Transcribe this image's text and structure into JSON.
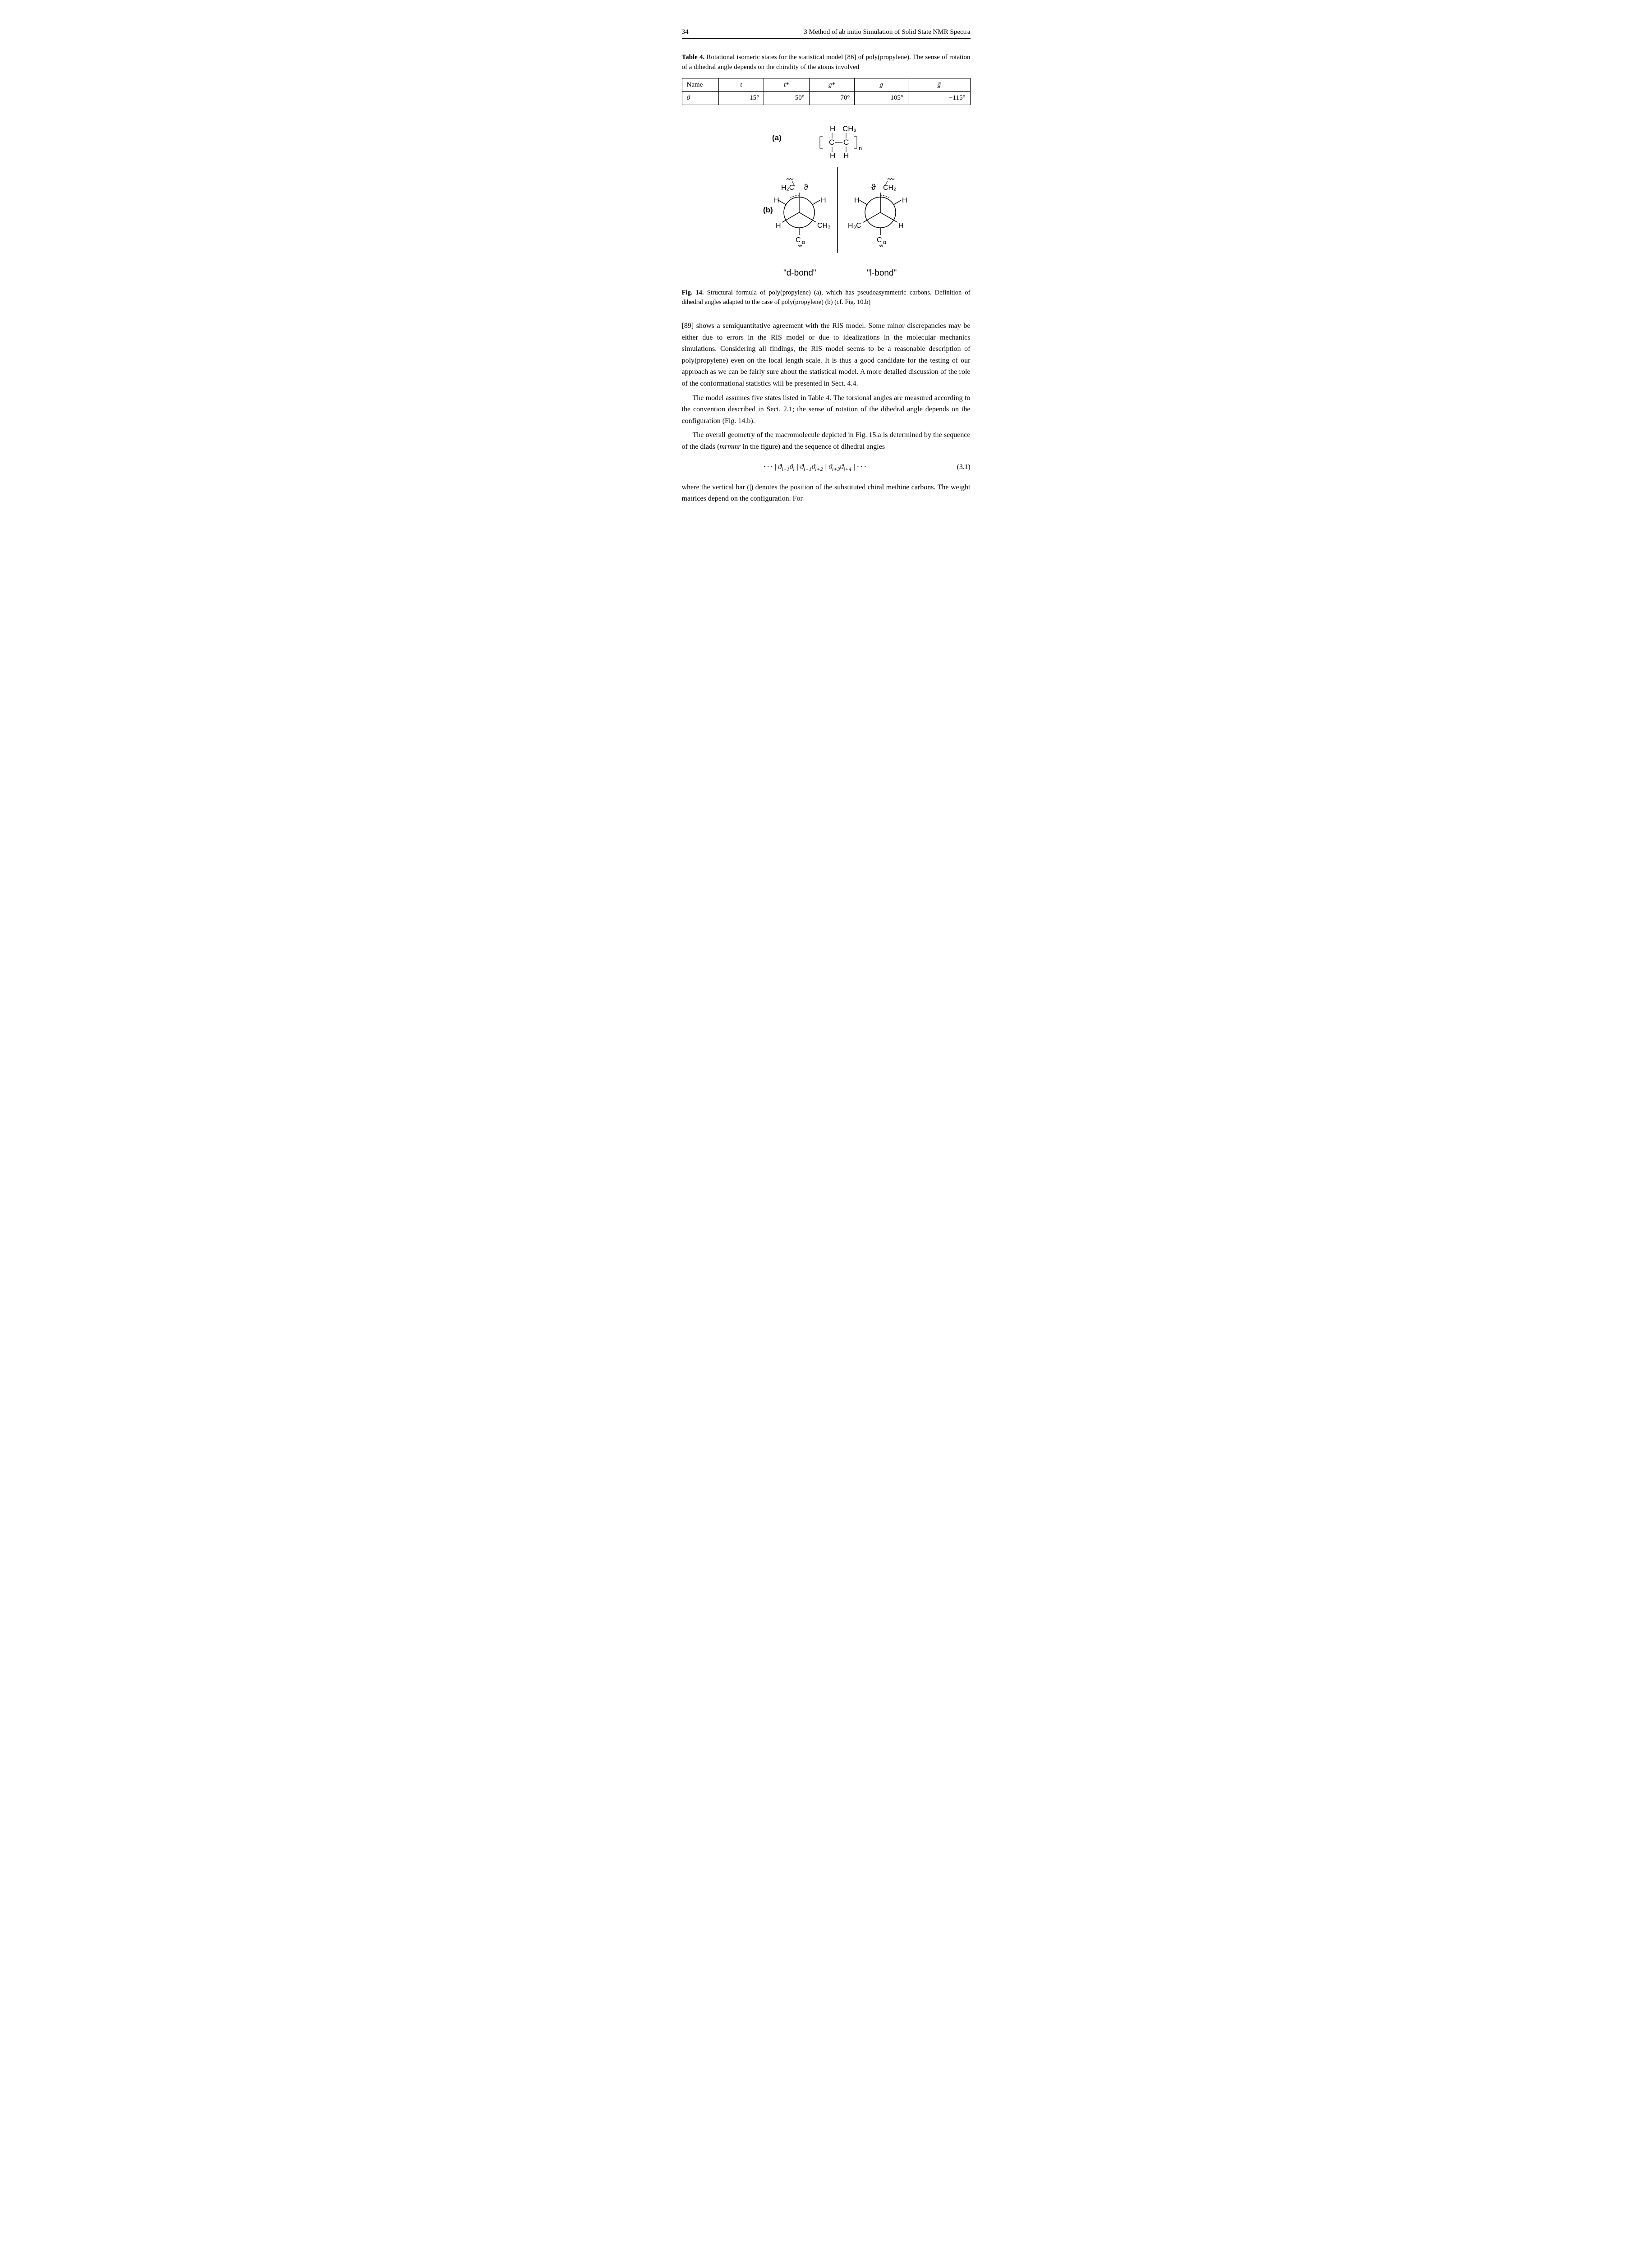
{
  "header": {
    "page_number": "34",
    "running_title": "3  Method of ab initio Simulation of Solid State NMR Spectra"
  },
  "table4": {
    "label": "Table 4.",
    "caption_rest": " Rotational isomeric states for the statistical model [86] of poly(propylene). The sense of rotation of a dihedral angle depends on the chirality of the atoms involved",
    "row_headers": [
      "Name",
      "ϑ"
    ],
    "col_headers_html": [
      "<span class='italic'>t</span>",
      "<span class='italic'>t</span>*",
      "<span class='italic'>g</span>*",
      "<span class='italic'>g</span>",
      "<span class='italic'>ḡ</span>"
    ],
    "values": [
      "15°",
      "50°",
      "70°",
      "105°",
      "−115°"
    ]
  },
  "figure14": {
    "letters": {
      "a": "(a)",
      "b": "(b)"
    },
    "formula_top": {
      "H": "H",
      "CH3": "CH₃",
      "C": "C",
      "n": "n"
    },
    "newman": {
      "H2C": "H₂C",
      "CH2": "CH₂",
      "theta": "ϑ",
      "H": "H",
      "CH3": "H₃C",
      "CH3r": "CH₃",
      "Ca": "C",
      "alpha": "α"
    },
    "labels": {
      "d": "\"d-bond\"",
      "l": "\"l-bond\""
    },
    "caption_label": "Fig. 14.",
    "caption_rest": " Structural formula of poly(propylene) (a), which has pseudoasymmetric carbons. Definition of dihedral angles adapted to the case of poly(propylene) (b) (cf. Fig. 10.b)"
  },
  "paragraphs": {
    "p1": "[89] shows a semiquantitative agreement with the RIS model. Some minor discrepancies may be either due to errors in the RIS model or due to idealizations in the molecular mechanics simulations. Considering all findings, the RIS model seems to be a reasonable description of poly(propylene) even on the local length scale. It is thus a good candidate for the testing of our approach as we can be fairly sure about the statistical model. A more detailed discussion of the role of the conformational statistics will be presented in Sect. 4.4.",
    "p2": "The model assumes five states listed in Table 4. The torsional angles are measured according to the convention described in Sect. 2.1; the sense of rotation of the dihedral angle depends on the configuration (Fig. 14.b).",
    "p3_pre": "The overall geometry of the macromolecule depicted in Fig. 15.a is determined by the sequence of the diads (",
    "p3_it": "mrmmr",
    "p3_post": " in the figure) and the sequence of dihedral angles",
    "p4": "where the vertical bar (|) denotes the position of the substituted chiral methine carbons. The weight matrices depend on the configuration. For"
  },
  "equation": {
    "html": "· · · | <span class='italic'>ϑ</span><sub>i−1</sub><span class='italic'>ϑ</span><sub>i</sub> | <span class='italic'>ϑ</span><sub>i+1</sub><span class='italic'>ϑ</span><sub>i+2</sub> | <span class='italic'>ϑ</span><sub>i+3</sub><span class='italic'>ϑ</span><sub>i+4</sub> | · · ·",
    "number": "(3.1)"
  },
  "style": {
    "text_color": "#000000",
    "background_color": "#ffffff",
    "body_font_size_pt": 11,
    "caption_font_size_pt": 10
  }
}
